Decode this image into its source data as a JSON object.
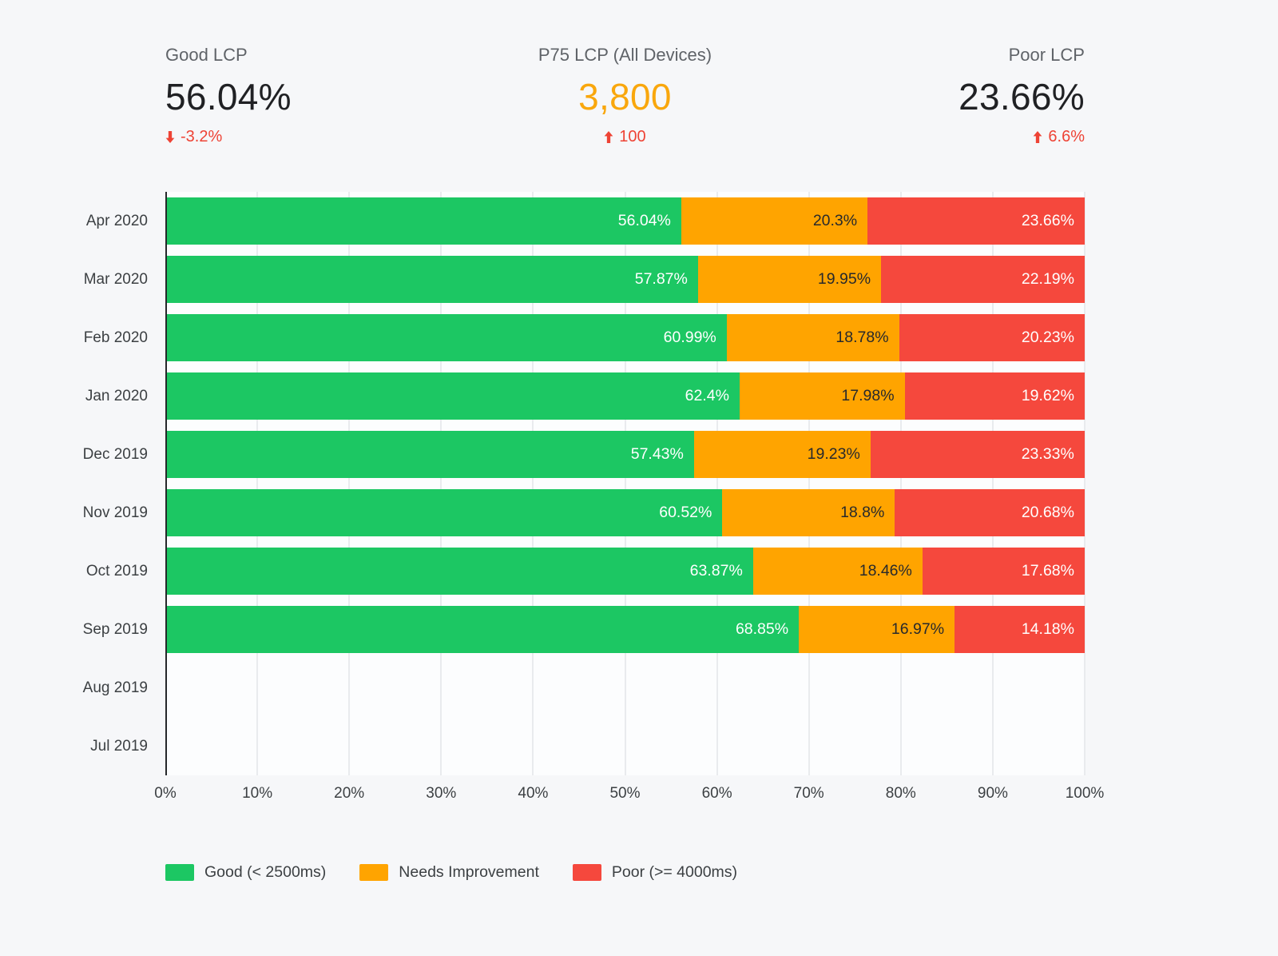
{
  "header": {
    "delta_color": "#ee4335",
    "stats": [
      {
        "label": "Good LCP",
        "value": "56.04%",
        "value_color": "#202124",
        "delta": "-3.2%",
        "delta_direction": "down"
      },
      {
        "label": "P75 LCP (All Devices)",
        "value": "3,800",
        "value_color": "#f9a70d",
        "delta": "100",
        "delta_direction": "up"
      },
      {
        "label": "Poor LCP",
        "value": "23.66%",
        "value_color": "#202124",
        "delta": "6.6%",
        "delta_direction": "up"
      }
    ]
  },
  "chart_data": {
    "type": "bar",
    "orientation": "horizontal",
    "stacked": true,
    "title": "",
    "xlabel": "",
    "ylabel": "",
    "xlim": [
      0,
      100
    ],
    "grid": "vertical",
    "legend_position": "bottom",
    "categories": [
      "Apr 2020",
      "Mar 2020",
      "Feb 2020",
      "Jan 2020",
      "Dec 2019",
      "Nov 2019",
      "Oct 2019",
      "Sep 2019",
      "Aug 2019",
      "Jul 2019"
    ],
    "series": [
      {
        "name": "Good (< 2500ms)",
        "color": "#1cc763",
        "label_color": "#ffffff",
        "values": [
          56.04,
          57.87,
          60.99,
          62.4,
          57.43,
          60.52,
          63.87,
          68.85,
          null,
          null
        ]
      },
      {
        "name": "Needs Improvement",
        "color": "#ffa400",
        "label_color": "#27292c",
        "values": [
          20.3,
          19.95,
          18.78,
          17.98,
          19.23,
          18.8,
          18.46,
          16.97,
          null,
          null
        ]
      },
      {
        "name": "Poor (>= 4000ms)",
        "color": "#f5483d",
        "label_color": "#ffffff",
        "values": [
          23.66,
          22.19,
          20.23,
          19.62,
          23.33,
          20.68,
          17.68,
          14.18,
          null,
          null
        ]
      }
    ],
    "xticks": [
      "0%",
      "10%",
      "20%",
      "30%",
      "40%",
      "50%",
      "60%",
      "70%",
      "80%",
      "90%",
      "100%"
    ]
  }
}
